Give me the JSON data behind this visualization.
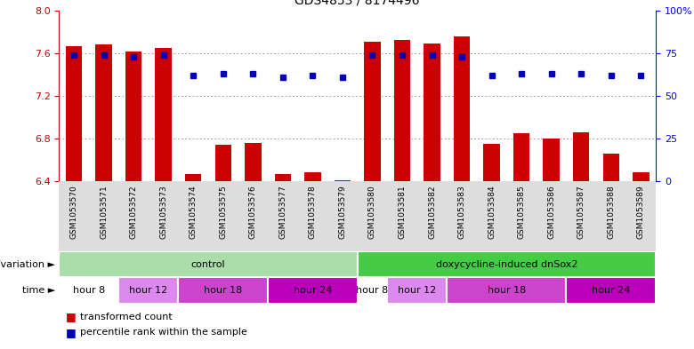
{
  "title": "GDS4853 / 8174496",
  "samples": [
    "GSM1053570",
    "GSM1053571",
    "GSM1053572",
    "GSM1053573",
    "GSM1053574",
    "GSM1053575",
    "GSM1053576",
    "GSM1053577",
    "GSM1053578",
    "GSM1053579",
    "GSM1053580",
    "GSM1053581",
    "GSM1053582",
    "GSM1053583",
    "GSM1053584",
    "GSM1053585",
    "GSM1053586",
    "GSM1053587",
    "GSM1053588",
    "GSM1053589"
  ],
  "bar_values": [
    7.67,
    7.68,
    7.62,
    7.65,
    6.47,
    6.74,
    6.76,
    6.47,
    6.49,
    6.41,
    7.71,
    7.72,
    7.69,
    7.76,
    6.75,
    6.85,
    6.8,
    6.86,
    6.66,
    6.49
  ],
  "dot_values": [
    74,
    74,
    73,
    74,
    62,
    63,
    63,
    61,
    62,
    61,
    74,
    74,
    74,
    73,
    62,
    63,
    63,
    63,
    62,
    62
  ],
  "ylim_left": [
    6.4,
    8.0
  ],
  "ylim_right": [
    0,
    100
  ],
  "yticks_left": [
    6.4,
    6.8,
    7.2,
    7.6,
    8.0
  ],
  "yticks_right": [
    0,
    25,
    50,
    75,
    100
  ],
  "ytick_labels_right": [
    "0",
    "25",
    "50",
    "75",
    "100%"
  ],
  "bar_color": "#cc0000",
  "dot_color": "#0000bb",
  "bar_bottom": 6.4,
  "genotype_groups": [
    {
      "label": "control",
      "start": 0,
      "end": 10,
      "color": "#aaddaa"
    },
    {
      "label": "doxycycline-induced dnSox2",
      "start": 10,
      "end": 20,
      "color": "#44cc44"
    }
  ],
  "time_groups": [
    {
      "label": "hour 8",
      "start": 0,
      "end": 2,
      "color": "#ffffff"
    },
    {
      "label": "hour 12",
      "start": 2,
      "end": 4,
      "color": "#dd88ee"
    },
    {
      "label": "hour 18",
      "start": 4,
      "end": 7,
      "color": "#cc44cc"
    },
    {
      "label": "hour 24",
      "start": 7,
      "end": 10,
      "color": "#cc00cc"
    },
    {
      "label": "hour 8",
      "start": 10,
      "end": 11,
      "color": "#ffffff"
    },
    {
      "label": "hour 12",
      "start": 11,
      "end": 13,
      "color": "#dd88ee"
    },
    {
      "label": "hour 18",
      "start": 13,
      "end": 17,
      "color": "#cc44cc"
    },
    {
      "label": "hour 24",
      "start": 17,
      "end": 20,
      "color": "#cc00cc"
    }
  ],
  "genotype_label": "genotype/variation",
  "time_label": "time",
  "legend_transformed": "transformed count",
  "legend_percentile": "percentile rank within the sample",
  "grid_color": "#888888",
  "bg_color": "#ffffff",
  "xticklabel_bg": "#dddddd"
}
